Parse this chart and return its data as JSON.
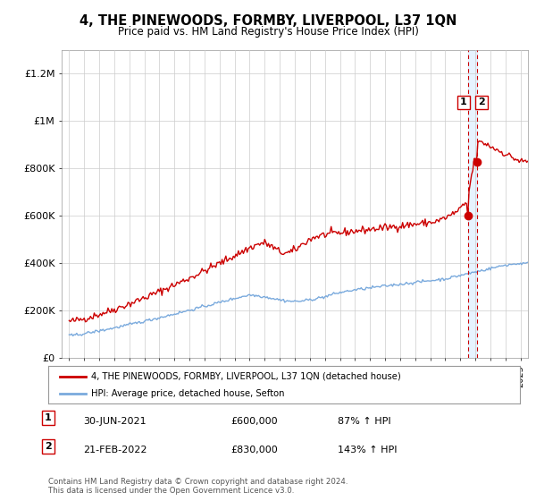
{
  "title": "4, THE PINEWOODS, FORMBY, LIVERPOOL, L37 1QN",
  "subtitle": "Price paid vs. HM Land Registry's House Price Index (HPI)",
  "legend_line1": "4, THE PINEWOODS, FORMBY, LIVERPOOL, L37 1QN (detached house)",
  "legend_line2": "HPI: Average price, detached house, Sefton",
  "footer": "Contains HM Land Registry data © Crown copyright and database right 2024.\nThis data is licensed under the Open Government Licence v3.0.",
  "annotation1": {
    "label": "1",
    "date": "30-JUN-2021",
    "price": "£600,000",
    "hpi": "87% ↑ HPI"
  },
  "annotation2": {
    "label": "2",
    "date": "21-FEB-2022",
    "price": "£830,000",
    "hpi": "143% ↑ HPI"
  },
  "red_color": "#cc0000",
  "blue_color": "#7aaadd",
  "shade_color": "#ddeeff",
  "dashed_color": "#cc0000",
  "ylim": [
    0,
    1300000
  ],
  "yticks": [
    0,
    200000,
    400000,
    600000,
    800000,
    1000000,
    1200000
  ],
  "ytick_labels": [
    "£0",
    "£200K",
    "£400K",
    "£600K",
    "£800K",
    "£1M",
    "£1.2M"
  ],
  "sale1_t": 2021.5,
  "sale1_price": 600000,
  "sale2_t": 2022.125,
  "sale2_price": 830000
}
